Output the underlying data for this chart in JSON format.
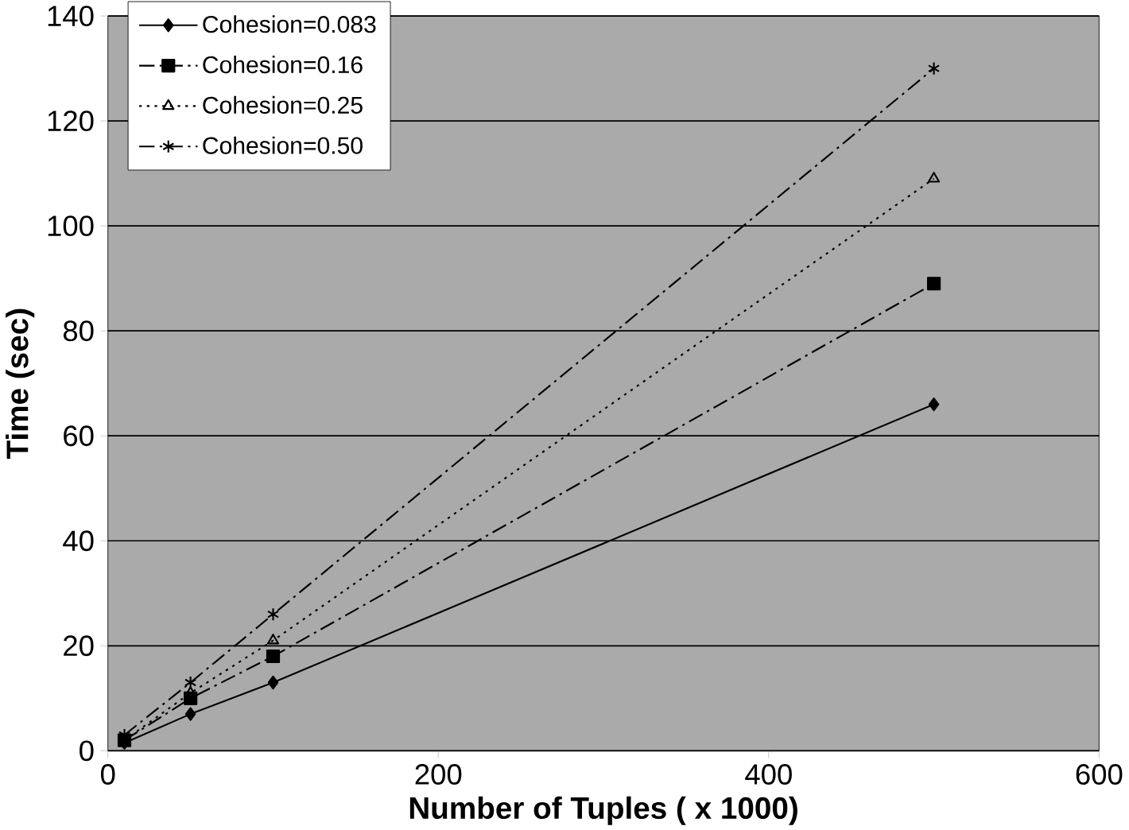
{
  "chart_data": {
    "type": "line",
    "xlabel": "Number of Tuples ( x 1000)",
    "ylabel": "Time (sec)",
    "x": [
      10,
      50,
      100,
      500
    ],
    "series": [
      {
        "name": "Cohesion=0.083",
        "color": "#000000",
        "marker": "diamond",
        "line_style": "solid",
        "values": [
          1.5,
          7,
          13,
          66
        ]
      },
      {
        "name": "Cohesion=0.16",
        "color": "#000000",
        "marker": "square",
        "line_style": "dashed",
        "values": [
          2,
          10,
          18,
          89
        ]
      },
      {
        "name": "Cohesion=0.25",
        "color": "#000000",
        "marker": "triangle",
        "line_style": "dotted",
        "values": [
          2,
          11,
          21,
          109
        ]
      },
      {
        "name": "Cohesion=0.50",
        "color": "#000000",
        "marker": "cross",
        "line_style": "dashed",
        "values": [
          3,
          13,
          26,
          130
        ]
      }
    ],
    "xlim": [
      0,
      600
    ],
    "xticks": [
      0,
      200,
      400,
      600
    ],
    "ylim": [
      0,
      140
    ],
    "yticks": [
      0,
      20,
      40,
      60,
      80,
      100,
      120,
      140
    ],
    "grid": "y",
    "legend": "top left"
  }
}
